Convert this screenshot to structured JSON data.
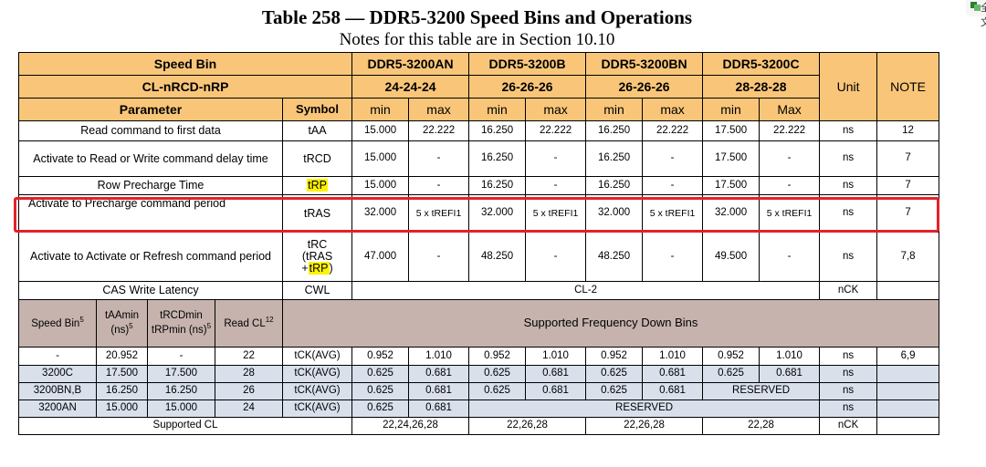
{
  "title": "Table 258 — DDR5-3200 Speed Bins and Operations",
  "subtitle": "Notes for this table are in Section 10.10",
  "corner_text": "全文",
  "header": {
    "speed_bin": "Speed Bin",
    "cl_label": "CL-nRCD-nRP",
    "parameter": "Parameter",
    "symbol": "Symbol",
    "unit": "Unit",
    "note": "NOTE",
    "bins": [
      {
        "name": "DDR5-3200AN",
        "cl": "24-24-24",
        "min": "min",
        "max": "max"
      },
      {
        "name": "DDR5-3200B",
        "cl": "26-26-26",
        "min": "min",
        "max": "max"
      },
      {
        "name": "DDR5-3200BN",
        "cl": "26-26-26",
        "min": "min",
        "max": "max"
      },
      {
        "name": "DDR5-3200C",
        "cl": "28-28-28",
        "min": "min",
        "max": "Max"
      }
    ]
  },
  "rows": [
    {
      "param": "Read command to first data",
      "symbol": "tAA",
      "vals": [
        "15.000",
        "22.222",
        "16.250",
        "22.222",
        "16.250",
        "22.222",
        "17.500",
        "22.222"
      ],
      "unit": "ns",
      "note": "12"
    },
    {
      "param": "Activate to Read or Write command delay time",
      "symbol": "tRCD",
      "vals": [
        "15.000",
        "-",
        "16.250",
        "-",
        "16.250",
        "-",
        "17.500",
        "-"
      ],
      "unit": "ns",
      "note": "7"
    },
    {
      "param": "Row Precharge Time",
      "symbol": "tRP",
      "vals": [
        "15.000",
        "-",
        "16.250",
        "-",
        "16.250",
        "-",
        "17.500",
        "-"
      ],
      "unit": "ns",
      "note": "7"
    },
    {
      "param": "Activate to Precharge command period",
      "symbol": "tRAS",
      "vals": [
        "32.000",
        "5 x tREFI1",
        "32.000",
        "5 x tREFI1",
        "32.000",
        "5 x tREFI1",
        "32.000",
        "5 x tREFI1"
      ],
      "unit": "ns",
      "note": "7"
    },
    {
      "param": "Activate to Activate or Refresh command period",
      "symbol_lines": [
        "tRC",
        "(tRAS",
        "+tRP)"
      ],
      "vals": [
        "47.000",
        "-",
        "48.250",
        "-",
        "48.250",
        "-",
        "49.500",
        "-"
      ],
      "unit": "ns",
      "note": "7,8"
    }
  ],
  "cwl_row": {
    "param": "CAS Write Latency",
    "symbol": "CWL",
    "value": "CL-2",
    "unit": "nCK",
    "note": ""
  },
  "down_bins": {
    "col_speed_bin": "Speed Bin",
    "col_speed_bin_sup": "5",
    "col_taa": "tAAmin (ns)",
    "col_taa_sup": "5",
    "col_trcd": "tRCDmin tRPmin (ns)",
    "col_trcd_sup": "5",
    "col_read_cl": "Read CL",
    "col_read_cl_sup": "12",
    "title": "Supported Frequency Down Bins",
    "rows": [
      {
        "bin": "-",
        "taa": "20.952",
        "trcd": "-",
        "cl": "22",
        "sym": "tCK(AVG)",
        "vals": [
          "0.952",
          "1.010",
          "0.952",
          "1.010",
          "0.952",
          "1.010",
          "0.952",
          "1.010"
        ],
        "unit": "ns",
        "note": "6,9"
      },
      {
        "bin": "3200C",
        "taa": "17.500",
        "trcd": "17.500",
        "cl": "28",
        "sym": "tCK(AVG)",
        "vals": [
          "0.625",
          "0.681",
          "0.625",
          "0.681",
          "0.625",
          "0.681",
          "0.625",
          "0.681"
        ],
        "unit": "ns",
        "note": ""
      },
      {
        "bin": "3200BN,B",
        "taa": "16.250",
        "trcd": "16.250",
        "cl": "26",
        "sym": "tCK(AVG)",
        "vals": [
          "0.625",
          "0.681",
          "0.625",
          "0.681",
          "0.625",
          "0.681"
        ],
        "reserved": "RESERVED",
        "unit": "ns",
        "note": ""
      },
      {
        "bin": "3200AN",
        "taa": "15.000",
        "trcd": "15.000",
        "cl": "24",
        "sym": "tCK(AVG)",
        "vals": [
          "0.625",
          "0.681"
        ],
        "reserved": "RESERVED",
        "unit": "ns",
        "note": ""
      }
    ],
    "supported_cl": {
      "label": "Supported CL",
      "vals": [
        "22,24,26,28",
        "22,26,28",
        "22,26,28",
        "22,28"
      ],
      "unit": "nCK",
      "note": ""
    }
  }
}
